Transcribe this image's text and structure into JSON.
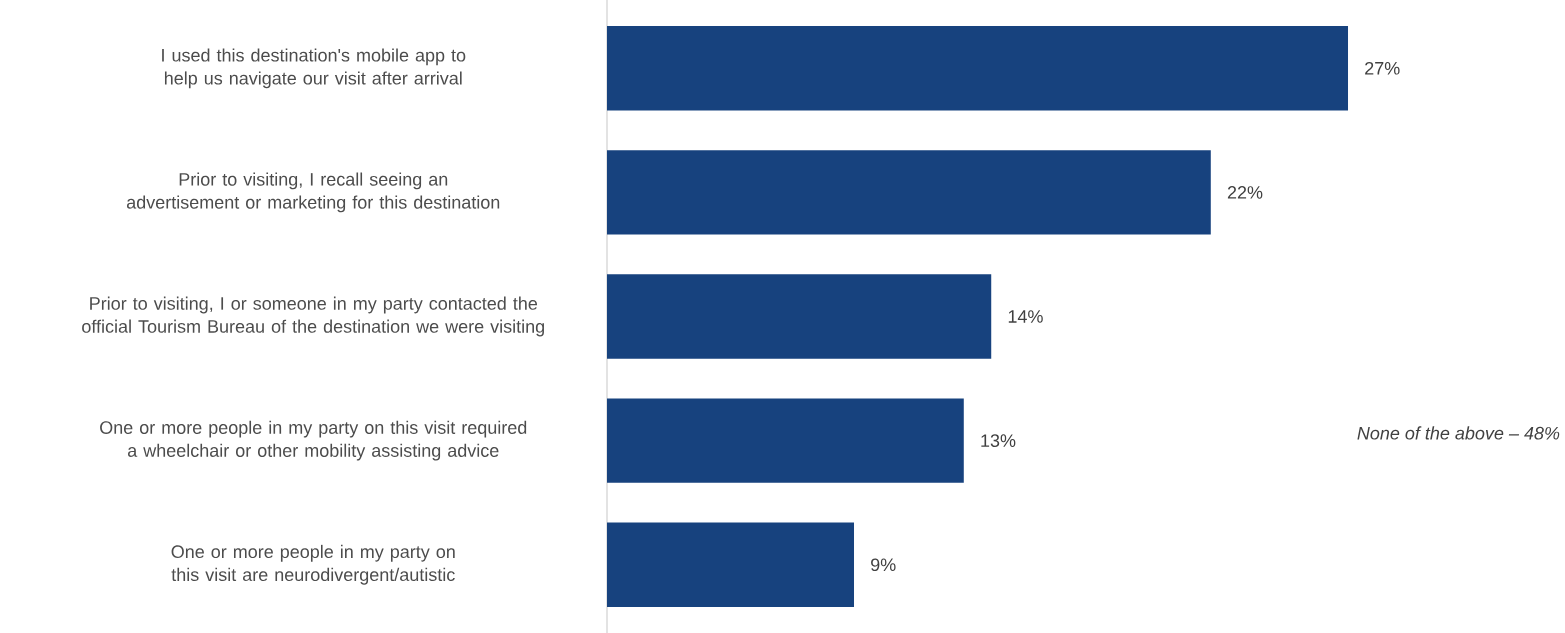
{
  "chart_data": {
    "type": "bar",
    "orientation": "horizontal",
    "categories": [
      "I used this destination's mobile app to help us navigate our visit after arrival",
      "Prior to visiting, I recall seeing an advertisement or marketing for this destination",
      "Prior to visiting, I or someone in my party contacted the official Tourism Bureau of the destination we were visiting",
      "One or more people in my party on this visit required a wheelchair or other mobility assisting advice",
      "One or more people in my party on this visit are neurodivergent/autistic"
    ],
    "values": [
      27,
      22,
      14,
      13,
      9
    ],
    "value_labels": [
      "27%",
      "22%",
      "14%",
      "13%",
      "9%"
    ],
    "color": "#17427e",
    "annotations": [
      "*None of the above – 48%*"
    ]
  }
}
